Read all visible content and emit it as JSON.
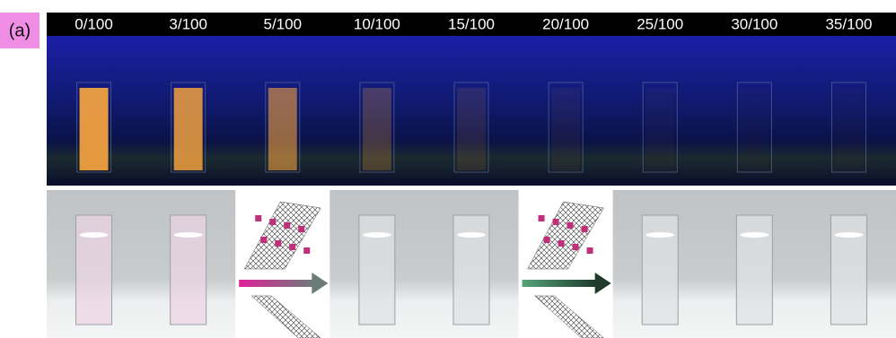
{
  "panel_label": "(a)",
  "ratios": [
    "0/100",
    "3/100",
    "5/100",
    "10/100",
    "15/100",
    "20/100",
    "25/100",
    "30/100",
    "35/100"
  ]
}
